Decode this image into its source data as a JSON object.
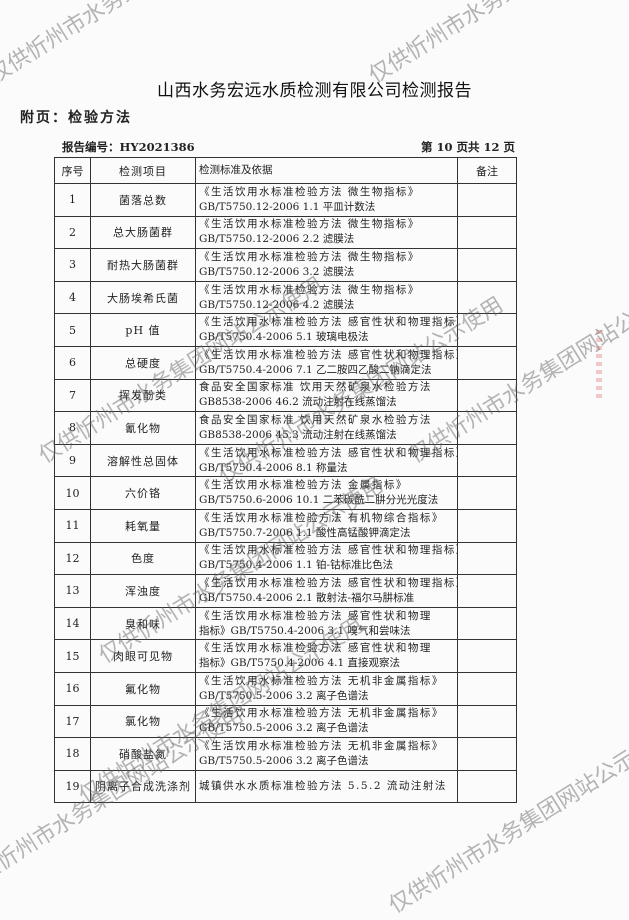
{
  "title": "山西水务宏远水质检测有限公司检测报告",
  "subtitle": "附页：检验方法",
  "report_no": "报告编号：HY2021386",
  "page_info": "第 10 页共 12 页",
  "watermark": "仅供忻州市水务集团网站公示使用",
  "table": {
    "headers": [
      "序号",
      "检测项目",
      "检测标准及依据",
      "备注"
    ],
    "rows": [
      {
        "no": "1",
        "item": "菌落总数",
        "m1": "《生活饮用水标准检验方法 微生物指标》",
        "m2": "GB/T5750.12-2006  1.1 平皿计数法",
        "note": ""
      },
      {
        "no": "2",
        "item": "总大肠菌群",
        "m1": "《生活饮用水标准检验方法 微生物指标》",
        "m2": "GB/T5750.12-2006  2.2 滤膜法",
        "note": ""
      },
      {
        "no": "3",
        "item": "耐热大肠菌群",
        "m1": "《生活饮用水标准检验方法 微生物指标》",
        "m2": "GB/T5750.12-2006  3.2 滤膜法",
        "note": ""
      },
      {
        "no": "4",
        "item": "大肠埃希氏菌",
        "m1": "《生活饮用水标准检验方法 微生物指标》",
        "m2": "GB/T5750.12-2006  4.2 滤膜法",
        "note": ""
      },
      {
        "no": "5",
        "item": "pH 值",
        "m1": "《生活饮用水标准检验方法 感官性状和物理指标》",
        "m2": "GB/T5750.4-2006  5.1 玻璃电极法",
        "note": ""
      },
      {
        "no": "6",
        "item": "总硬度",
        "m1": "《生活饮用水标准检验方法 感官性状和物理指标》",
        "m2": "GB/T5750.4-2006  7.1 乙二胺四乙酸二钠滴定法",
        "note": ""
      },
      {
        "no": "7",
        "item": "挥发酚类",
        "m1": "食品安全国家标准  饮用天然矿泉水检验方法",
        "m2": "GB8538-2006   46.2 流动注射在线蒸馏法",
        "note": ""
      },
      {
        "no": "8",
        "item": "氰化物",
        "m1": "食品安全国家标准  饮用天然矿泉水检验方法",
        "m2": "GB8538-2006   45.3 流动注射在线蒸馏法",
        "note": ""
      },
      {
        "no": "9",
        "item": "溶解性总固体",
        "m1": "《生活饮用水标准检验方法 感官性状和物理指标》",
        "m2": "GB/T5750.4-2006  8.1 称量法",
        "note": ""
      },
      {
        "no": "10",
        "item": "六价铬",
        "m1": "《生活饮用水标准检验方法 金属指标》",
        "m2": "GB/T5750.6-2006  10.1 二苯碳酰二肼分光光度法",
        "note": ""
      },
      {
        "no": "11",
        "item": "耗氧量",
        "m1": "《生活饮用水标准检验方法 有机物综合指标》",
        "m2": "GB/T5750.7-2006  1.1 酸性高锰酸钾滴定法",
        "note": ""
      },
      {
        "no": "12",
        "item": "色度",
        "m1": "《生活饮用水标准检验方法 感官性状和物理指标》",
        "m2": "GB/T5750.4-2006  1.1 铂-钴标准比色法",
        "note": ""
      },
      {
        "no": "13",
        "item": "浑浊度",
        "m1": "《生活饮用水标准检验方法 感官性状和物理指标》",
        "m2": "GB/T5750.4-2006  2.1 散射法-福尔马肼标准",
        "note": ""
      },
      {
        "no": "14",
        "item": "臭和味",
        "m1": "  《生活饮用水标准检验方法 感官性状和物理",
        "m2": "指标》GB/T5750.4-2006 3.1 嗅气和尝味法",
        "note": ""
      },
      {
        "no": "15",
        "item": "肉眼可见物",
        "m1": "  《生活饮用水标准检验方法 感官性状和物理",
        "m2": "指标》GB/T5750.4-2006 4.1 直接观察法",
        "note": ""
      },
      {
        "no": "16",
        "item": "氟化物",
        "m1": "《生活饮用水标准检验方法 无机非金属指标》",
        "m2": "GB/T5750.5-2006  3.2 离子色谱法",
        "note": ""
      },
      {
        "no": "17",
        "item": "氯化物",
        "m1": "《生活饮用水标准检验方法 无机非金属指标》",
        "m2": "GB/T5750.5-2006  3.2 离子色谱法",
        "note": ""
      },
      {
        "no": "18",
        "item": "硝酸盐氮",
        "m1": "《生活饮用水标准检验方法 无机非金属指标》",
        "m2": "GB/T5750.5-2006  3.2 离子色谱法",
        "note": ""
      },
      {
        "no": "19",
        "item": "阴离子合成洗涤剂",
        "m1": "城镇供水水质标准检验方法 5.5.2  流动注射法",
        "m2": "",
        "note": ""
      }
    ]
  }
}
